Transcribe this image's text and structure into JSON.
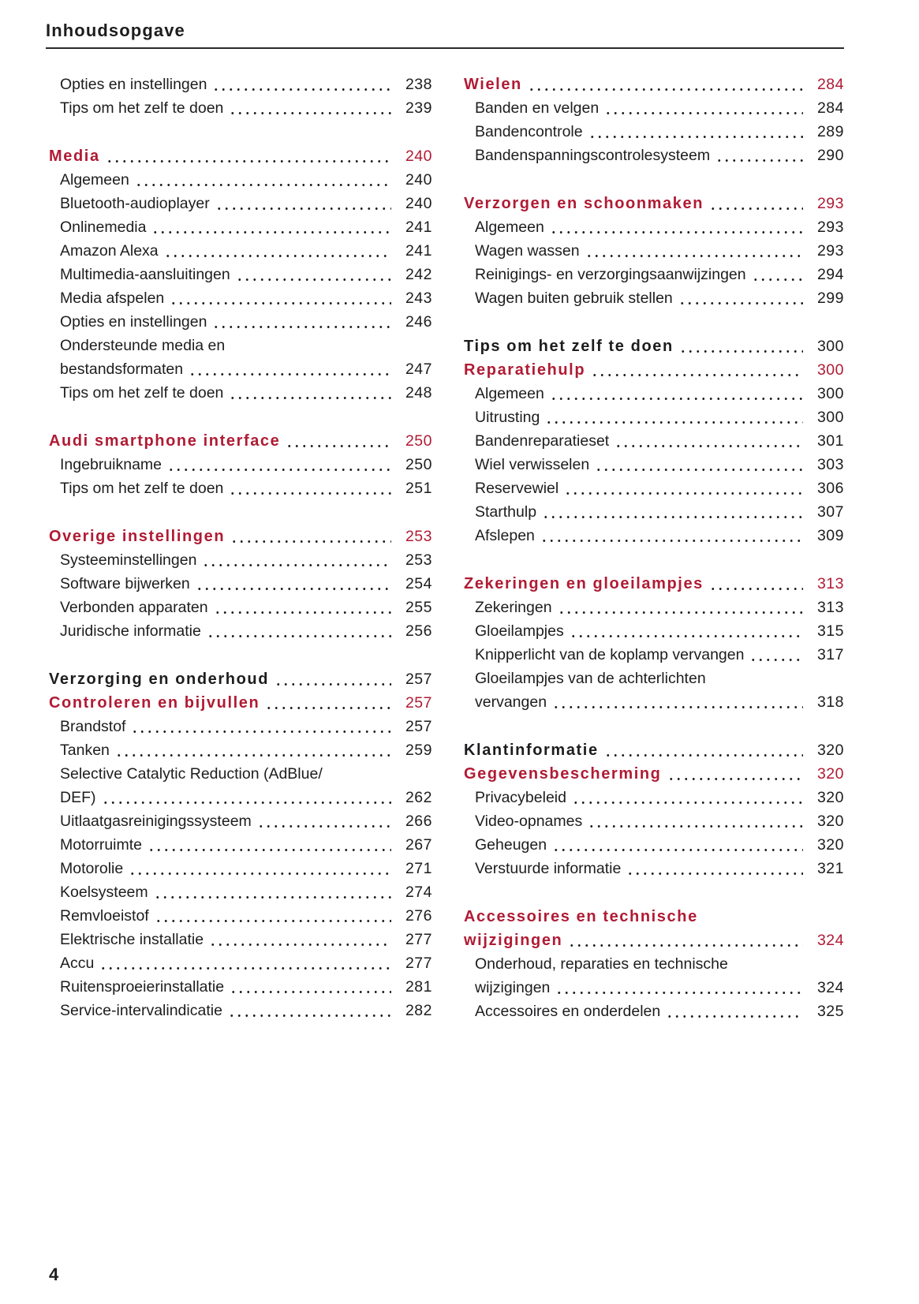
{
  "page": {
    "header_title": "Inhoudsopgave",
    "footer_page_number": "4"
  },
  "colors": {
    "accent_red": "#b01b34",
    "text": "#1d1d1f",
    "rule": "#2b2b2b"
  },
  "toc": {
    "columns": [
      {
        "groups": [
          {
            "entries": [
              {
                "style": "sub",
                "lines": [
                  "Opties en instellingen"
                ],
                "page": "238"
              },
              {
                "style": "sub",
                "lines": [
                  "Tips om het zelf te doen"
                ],
                "page": "239"
              }
            ]
          },
          {
            "entries": [
              {
                "style": "red",
                "lines": [
                  "Media"
                ],
                "page": "240"
              },
              {
                "style": "sub",
                "lines": [
                  "Algemeen"
                ],
                "page": "240"
              },
              {
                "style": "sub",
                "lines": [
                  "Bluetooth-audioplayer"
                ],
                "page": "240"
              },
              {
                "style": "sub",
                "lines": [
                  "Onlinemedia"
                ],
                "page": "241"
              },
              {
                "style": "sub",
                "lines": [
                  "Amazon Alexa"
                ],
                "page": "241"
              },
              {
                "style": "sub",
                "lines": [
                  "Multimedia-aansluitingen"
                ],
                "page": "242"
              },
              {
                "style": "sub",
                "lines": [
                  "Media afspelen"
                ],
                "page": "243"
              },
              {
                "style": "sub",
                "lines": [
                  "Opties en instellingen"
                ],
                "page": "246"
              },
              {
                "style": "sub",
                "lines": [
                  "Ondersteunde media en",
                  "bestandsformaten"
                ],
                "page": "247"
              },
              {
                "style": "sub",
                "lines": [
                  "Tips om het zelf te doen"
                ],
                "page": "248"
              }
            ]
          },
          {
            "entries": [
              {
                "style": "red",
                "lines": [
                  "Audi smartphone interface"
                ],
                "page": "250"
              },
              {
                "style": "sub",
                "lines": [
                  "Ingebruikname"
                ],
                "page": "250"
              },
              {
                "style": "sub",
                "lines": [
                  "Tips om het zelf te doen"
                ],
                "page": "251"
              }
            ]
          },
          {
            "entries": [
              {
                "style": "red",
                "lines": [
                  "Overige instellingen"
                ],
                "page": "253"
              },
              {
                "style": "sub",
                "lines": [
                  "Systeeminstellingen"
                ],
                "page": "253"
              },
              {
                "style": "sub",
                "lines": [
                  "Software bijwerken"
                ],
                "page": "254"
              },
              {
                "style": "sub",
                "lines": [
                  "Verbonden apparaten"
                ],
                "page": "255"
              },
              {
                "style": "sub",
                "lines": [
                  "Juridische informatie"
                ],
                "page": "256"
              }
            ]
          },
          {
            "entries": [
              {
                "style": "bold",
                "lines": [
                  "Verzorging en onderhoud"
                ],
                "page": "257"
              },
              {
                "style": "red",
                "lines": [
                  "Controleren en bijvullen"
                ],
                "page": "257"
              },
              {
                "style": "sub",
                "lines": [
                  "Brandstof"
                ],
                "page": "257"
              },
              {
                "style": "sub",
                "lines": [
                  "Tanken"
                ],
                "page": "259"
              },
              {
                "style": "sub",
                "lines": [
                  "Selective Catalytic Reduction (AdBlue/",
                  "DEF)"
                ],
                "page": "262"
              },
              {
                "style": "sub",
                "lines": [
                  "Uitlaatgasreinigingssysteem"
                ],
                "page": "266"
              },
              {
                "style": "sub",
                "lines": [
                  "Motorruimte"
                ],
                "page": "267"
              },
              {
                "style": "sub",
                "lines": [
                  "Motorolie"
                ],
                "page": "271"
              },
              {
                "style": "sub",
                "lines": [
                  "Koelsysteem"
                ],
                "page": "274"
              },
              {
                "style": "sub",
                "lines": [
                  "Remvloeistof"
                ],
                "page": "276"
              },
              {
                "style": "sub",
                "lines": [
                  "Elektrische installatie"
                ],
                "page": "277"
              },
              {
                "style": "sub",
                "lines": [
                  "Accu"
                ],
                "page": "277"
              },
              {
                "style": "sub",
                "lines": [
                  "Ruitensproeierinstallatie"
                ],
                "page": "281"
              },
              {
                "style": "sub",
                "lines": [
                  "Service-intervalindicatie"
                ],
                "page": "282"
              }
            ]
          }
        ]
      },
      {
        "groups": [
          {
            "entries": [
              {
                "style": "red",
                "lines": [
                  "Wielen"
                ],
                "page": "284"
              },
              {
                "style": "sub",
                "lines": [
                  "Banden en velgen"
                ],
                "page": "284"
              },
              {
                "style": "sub",
                "lines": [
                  "Bandencontrole"
                ],
                "page": "289"
              },
              {
                "style": "sub",
                "lines": [
                  "Bandenspanningscontrolesysteem"
                ],
                "page": "290"
              }
            ]
          },
          {
            "entries": [
              {
                "style": "red",
                "lines": [
                  "Verzorgen en schoonmaken"
                ],
                "page": "293"
              },
              {
                "style": "sub",
                "lines": [
                  "Algemeen"
                ],
                "page": "293"
              },
              {
                "style": "sub",
                "lines": [
                  "Wagen wassen"
                ],
                "page": "293"
              },
              {
                "style": "sub",
                "lines": [
                  "Reinigings- en verzorgingsaanwijzingen"
                ],
                "page": "294"
              },
              {
                "style": "sub",
                "lines": [
                  "Wagen buiten gebruik stellen"
                ],
                "page": "299"
              }
            ]
          },
          {
            "entries": [
              {
                "style": "bold",
                "lines": [
                  "Tips om het zelf te doen"
                ],
                "page": "300"
              },
              {
                "style": "red",
                "lines": [
                  "Reparatiehulp"
                ],
                "page": "300"
              },
              {
                "style": "sub",
                "lines": [
                  "Algemeen"
                ],
                "page": "300"
              },
              {
                "style": "sub",
                "lines": [
                  "Uitrusting"
                ],
                "page": "300"
              },
              {
                "style": "sub",
                "lines": [
                  "Bandenreparatieset"
                ],
                "page": "301"
              },
              {
                "style": "sub",
                "lines": [
                  "Wiel verwisselen"
                ],
                "page": "303"
              },
              {
                "style": "sub",
                "lines": [
                  "Reservewiel"
                ],
                "page": "306"
              },
              {
                "style": "sub",
                "lines": [
                  "Starthulp"
                ],
                "page": "307"
              },
              {
                "style": "sub",
                "lines": [
                  "Afslepen"
                ],
                "page": "309"
              }
            ]
          },
          {
            "entries": [
              {
                "style": "red",
                "lines": [
                  "Zekeringen en gloeilampjes"
                ],
                "page": "313"
              },
              {
                "style": "sub",
                "lines": [
                  "Zekeringen"
                ],
                "page": "313"
              },
              {
                "style": "sub",
                "lines": [
                  "Gloeilampjes"
                ],
                "page": "315"
              },
              {
                "style": "sub",
                "lines": [
                  "Knipperlicht van de koplamp vervangen"
                ],
                "page": "317"
              },
              {
                "style": "sub",
                "lines": [
                  "Gloeilampjes van de achterlichten",
                  "vervangen"
                ],
                "page": "318"
              }
            ]
          },
          {
            "entries": [
              {
                "style": "bold",
                "lines": [
                  "Klantinformatie"
                ],
                "page": "320"
              },
              {
                "style": "red",
                "lines": [
                  "Gegevensbescherming"
                ],
                "page": "320"
              },
              {
                "style": "sub",
                "lines": [
                  "Privacybeleid"
                ],
                "page": "320"
              },
              {
                "style": "sub",
                "lines": [
                  "Video-opnames"
                ],
                "page": "320"
              },
              {
                "style": "sub",
                "lines": [
                  "Geheugen"
                ],
                "page": "320"
              },
              {
                "style": "sub",
                "lines": [
                  "Verstuurde informatie"
                ],
                "page": "321"
              }
            ]
          },
          {
            "entries": [
              {
                "style": "red",
                "lines": [
                  "Accessoires en technische",
                  "wijzigingen"
                ],
                "page": "324"
              },
              {
                "style": "sub",
                "lines": [
                  "Onderhoud, reparaties en technische",
                  "wijzigingen"
                ],
                "page": "324"
              },
              {
                "style": "sub",
                "lines": [
                  "Accessoires en onderdelen"
                ],
                "page": "325"
              }
            ]
          }
        ]
      }
    ]
  }
}
